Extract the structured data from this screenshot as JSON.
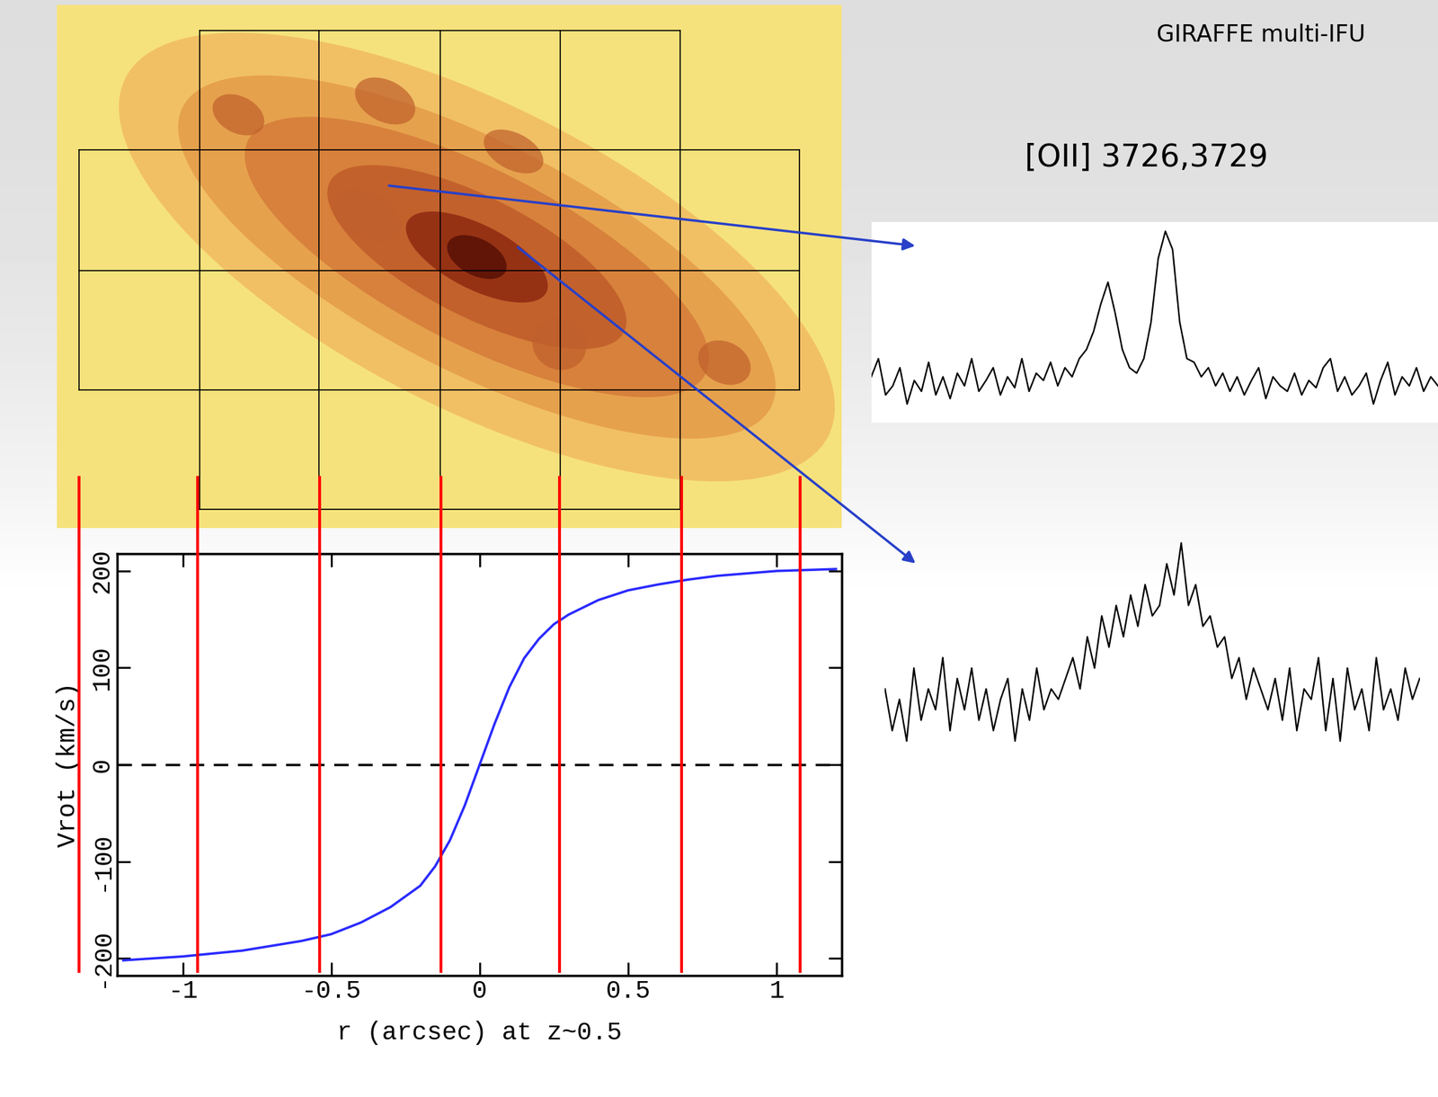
{
  "header": {
    "instrument": "GIRAFFE multi-IFU",
    "emission_line": "[OII] 3726,3729"
  },
  "chart_data": {
    "type": "line",
    "x": [
      -1.2,
      -1.0,
      -0.8,
      -0.6,
      -0.5,
      -0.4,
      -0.3,
      -0.2,
      -0.15,
      -0.1,
      -0.05,
      0,
      0.05,
      0.1,
      0.15,
      0.2,
      0.25,
      0.3,
      0.4,
      0.5,
      0.6,
      0.7,
      0.8,
      1.0,
      1.2
    ],
    "values": [
      -202,
      -198,
      -192,
      -182,
      -175,
      -163,
      -147,
      -125,
      -105,
      -78,
      -42,
      0,
      42,
      80,
      110,
      130,
      145,
      155,
      170,
      180,
      186,
      191,
      195,
      200,
      202
    ],
    "color": "#2a2aff",
    "xlabel": "r (arcsec) at z~0.5",
    "ylabel": "Vrot (km/s)",
    "xlim": [
      -1.22,
      1.22
    ],
    "ylim": [
      -218,
      218
    ],
    "xticks": [
      -1,
      -0.5,
      0,
      0.5,
      1
    ],
    "yticks": [
      -200,
      -100,
      0,
      100,
      200
    ],
    "zero_line": 0,
    "ifu_edges": [
      -1.35,
      -0.95,
      -0.54,
      -0.13,
      0.27,
      0.68,
      1.08
    ]
  },
  "spectra": [
    {
      "values": [
        0.2,
        0.3,
        0.1,
        0.15,
        0.25,
        0.05,
        0.18,
        0.12,
        0.28,
        0.1,
        0.2,
        0.08,
        0.22,
        0.15,
        0.3,
        0.12,
        0.18,
        0.25,
        0.1,
        0.2,
        0.14,
        0.3,
        0.12,
        0.22,
        0.18,
        0.28,
        0.15,
        0.25,
        0.2,
        0.3,
        0.35,
        0.45,
        0.6,
        0.72,
        0.55,
        0.35,
        0.25,
        0.22,
        0.3,
        0.5,
        0.85,
        1.0,
        0.9,
        0.5,
        0.3,
        0.28,
        0.2,
        0.25,
        0.15,
        0.22,
        0.12,
        0.2,
        0.1,
        0.18,
        0.25,
        0.08,
        0.2,
        0.15,
        0.12,
        0.22,
        0.1,
        0.18,
        0.14,
        0.25,
        0.3,
        0.12,
        0.2,
        0.1,
        0.15,
        0.22,
        0.05,
        0.18,
        0.28,
        0.1,
        0.2,
        0.15,
        0.25,
        0.12,
        0.2,
        0.15
      ]
    },
    {
      "values": [
        0.3,
        0.1,
        0.25,
        0.05,
        0.4,
        0.15,
        0.3,
        0.2,
        0.45,
        0.1,
        0.35,
        0.2,
        0.4,
        0.15,
        0.3,
        0.1,
        0.25,
        0.35,
        0.05,
        0.3,
        0.15,
        0.4,
        0.2,
        0.3,
        0.25,
        0.35,
        0.45,
        0.3,
        0.55,
        0.4,
        0.65,
        0.5,
        0.7,
        0.55,
        0.75,
        0.6,
        0.8,
        0.65,
        0.7,
        0.9,
        0.75,
        1.0,
        0.7,
        0.8,
        0.6,
        0.65,
        0.5,
        0.55,
        0.35,
        0.45,
        0.25,
        0.4,
        0.3,
        0.2,
        0.35,
        0.15,
        0.4,
        0.1,
        0.3,
        0.25,
        0.45,
        0.1,
        0.35,
        0.05,
        0.4,
        0.2,
        0.3,
        0.1,
        0.45,
        0.2,
        0.3,
        0.15,
        0.4,
        0.25,
        0.35
      ]
    }
  ]
}
